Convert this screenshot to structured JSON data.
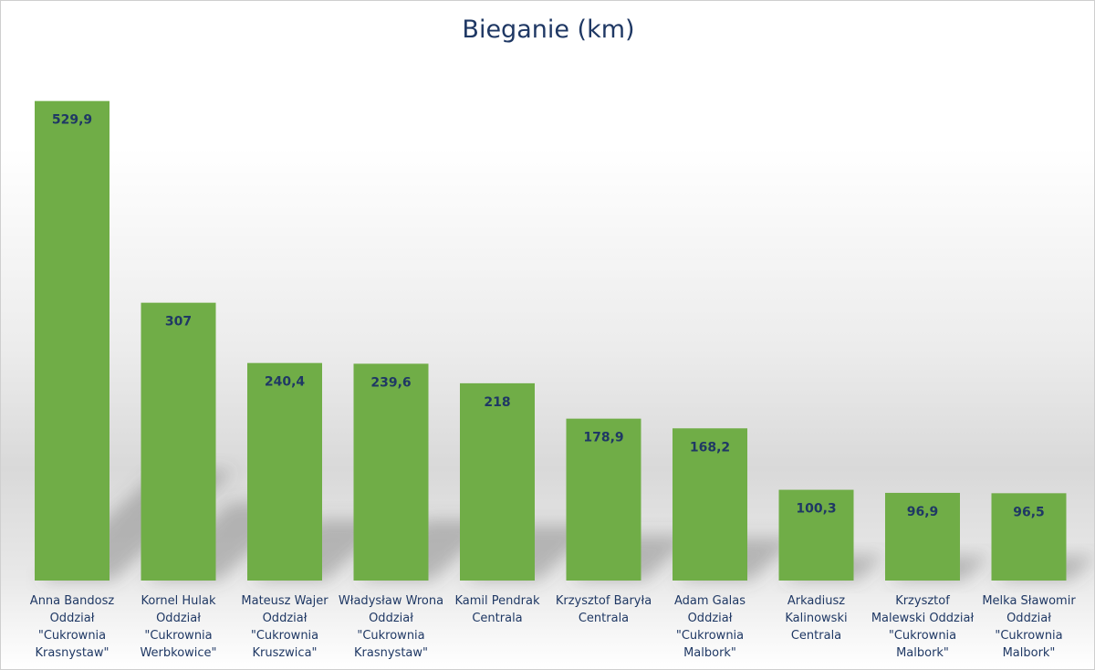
{
  "chart_data": {
    "type": "bar",
    "title": "Bieganie (km)",
    "xlabel": "",
    "ylabel": "",
    "ylim": [
      0,
      580
    ],
    "grid": false,
    "legend": "none",
    "bar_color": "#70ad47",
    "label_color": "#1f3864",
    "categories": [
      "Anna Bandosz Oddział \"Cukrownia Krasnystaw\"",
      "Kornel Hulak Oddział \"Cukrownia Werbkowice\"",
      "Mateusz Wajer Oddział \"Cukrownia Kruszwica\"",
      "Władysław Wrona Oddział \"Cukrownia Krasnystaw\"",
      "Kamil Pendrak Centrala",
      "Krzysztof Baryła Centrala",
      "Adam Galas Oddział \"Cukrownia Malbork\"",
      "Arkadiusz Kalinowski Centrala",
      "Krzysztof Malewski Oddział \"Cukrownia Malbork\"",
      "Melka Sławomir Oddział \"Cukrownia Malbork\""
    ],
    "values": [
      529.9,
      307,
      240.4,
      239.6,
      218,
      178.9,
      168.2,
      100.3,
      96.9,
      96.5
    ],
    "value_labels": [
      "529,9",
      "307",
      "240,4",
      "239,6",
      "218",
      "178,9",
      "168,2",
      "100,3",
      "96,9",
      "96,5"
    ]
  }
}
